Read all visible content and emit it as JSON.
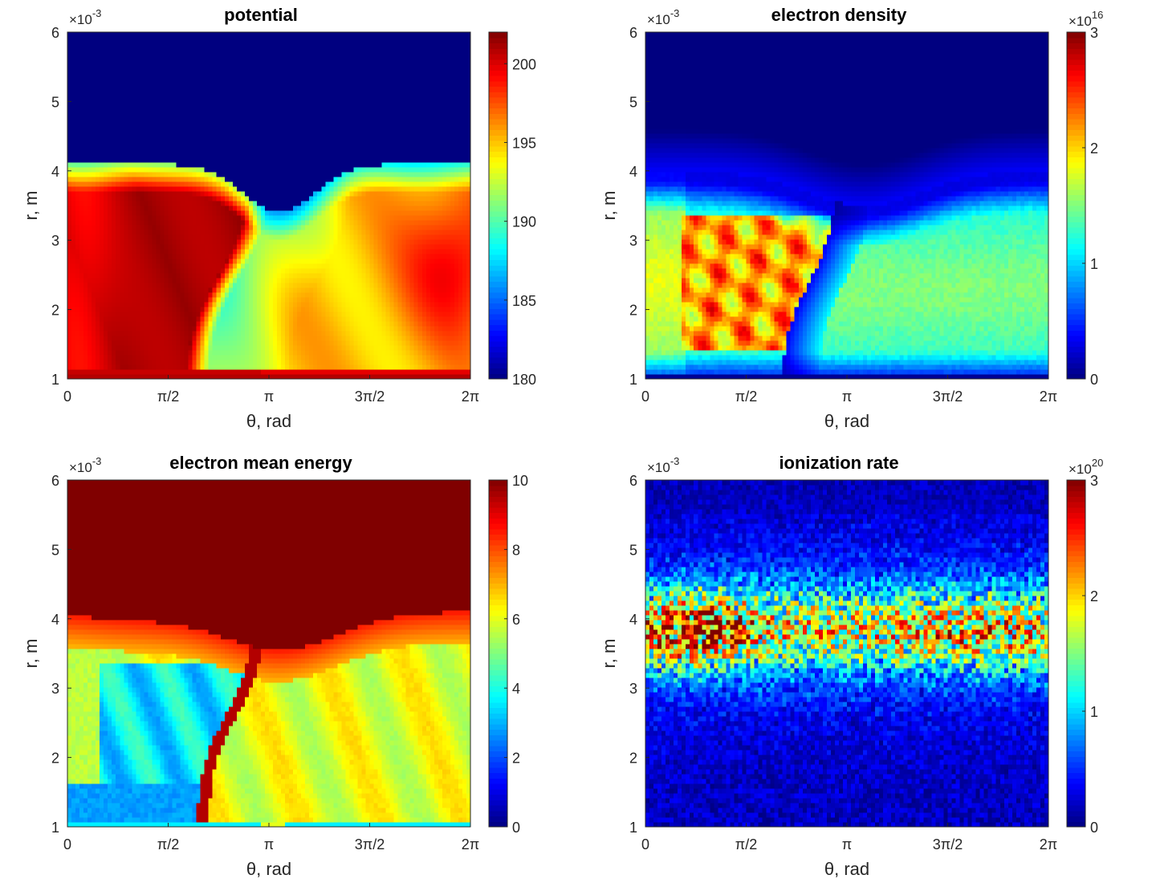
{
  "chart_data": [
    {
      "type": "heatmap",
      "title": "potential",
      "xlabel": "θ, rad",
      "ylabel": "r, m",
      "xlim": [
        0,
        6.2832
      ],
      "ylim": [
        0.001,
        0.006
      ],
      "y_multiplier": "×10",
      "y_multiplier_exp": "-3",
      "xticks": [
        {
          "value": 0,
          "label": "0"
        },
        {
          "value": 1.5708,
          "label": "π/2"
        },
        {
          "value": 3.1416,
          "label": "π"
        },
        {
          "value": 4.7124,
          "label": "3π/2"
        },
        {
          "value": 6.2832,
          "label": "2π"
        }
      ],
      "yticks": [
        {
          "value": 1,
          "label": "1"
        },
        {
          "value": 2,
          "label": "2"
        },
        {
          "value": 3,
          "label": "3"
        },
        {
          "value": 4,
          "label": "4"
        },
        {
          "value": 5,
          "label": "5"
        },
        {
          "value": 6,
          "label": "6"
        }
      ],
      "colormap": "jet",
      "clim": [
        180,
        202
      ],
      "colorbar_ticks": [
        {
          "value": 180,
          "label": "180"
        },
        {
          "value": 185,
          "label": "185"
        },
        {
          "value": 190,
          "label": "190"
        },
        {
          "value": 195,
          "label": "195"
        },
        {
          "value": 200,
          "label": "200"
        }
      ],
      "colorbar_multiplier": "",
      "colorbar_multiplier_exp": "",
      "features": {
        "outer_r": 0.0041,
        "high_region": {
          "theta_range": [
            0,
            3.1
          ],
          "r_range": [
            0.0011,
            0.0038
          ],
          "value": 201
        },
        "low_valley": {
          "theta": 3.3,
          "r_top": 0.0035,
          "value": 188
        },
        "right_region_value": 193,
        "cathode_strip_value": 201
      }
    },
    {
      "type": "heatmap",
      "title": "electron density",
      "xlabel": "θ, rad",
      "ylabel": "r, m",
      "xlim": [
        0,
        6.2832
      ],
      "ylim": [
        0.001,
        0.006
      ],
      "y_multiplier": "×10",
      "y_multiplier_exp": "-3",
      "xticks": [
        {
          "value": 0,
          "label": "0"
        },
        {
          "value": 1.5708,
          "label": "π/2"
        },
        {
          "value": 3.1416,
          "label": "π"
        },
        {
          "value": 4.7124,
          "label": "3π/2"
        },
        {
          "value": 6.2832,
          "label": "2π"
        }
      ],
      "yticks": [
        {
          "value": 1,
          "label": "1"
        },
        {
          "value": 2,
          "label": "2"
        },
        {
          "value": 3,
          "label": "3"
        },
        {
          "value": 4,
          "label": "4"
        },
        {
          "value": 5,
          "label": "5"
        },
        {
          "value": 6,
          "label": "6"
        }
      ],
      "colormap": "jet",
      "clim": [
        0,
        3e+16
      ],
      "colorbar_ticks": [
        {
          "value": 0,
          "label": "0"
        },
        {
          "value": 1e+16,
          "label": "1"
        },
        {
          "value": 2e+16,
          "label": "2"
        },
        {
          "value": 3e+16,
          "label": "3"
        }
      ],
      "colorbar_multiplier": "×10",
      "colorbar_multiplier_exp": "16",
      "features": {
        "spoke": {
          "theta_range": [
            0.6,
            2.9
          ],
          "r_range": [
            0.0015,
            0.0034
          ],
          "peak": 2.6e+16
        },
        "background": 1.2e+16,
        "upper_edge_r": 0.004
      }
    },
    {
      "type": "heatmap",
      "title": "electron mean energy",
      "xlabel": "θ, rad",
      "ylabel": "r, m",
      "xlim": [
        0,
        6.2832
      ],
      "ylim": [
        0.001,
        0.006
      ],
      "y_multiplier": "×10",
      "y_multiplier_exp": "-3",
      "xticks": [
        {
          "value": 0,
          "label": "0"
        },
        {
          "value": 1.5708,
          "label": "π/2"
        },
        {
          "value": 3.1416,
          "label": "π"
        },
        {
          "value": 4.7124,
          "label": "3π/2"
        },
        {
          "value": 6.2832,
          "label": "2π"
        }
      ],
      "yticks": [
        {
          "value": 1,
          "label": "1"
        },
        {
          "value": 2,
          "label": "2"
        },
        {
          "value": 3,
          "label": "3"
        },
        {
          "value": 4,
          "label": "4"
        },
        {
          "value": 5,
          "label": "5"
        },
        {
          "value": 6,
          "label": "6"
        }
      ],
      "colormap": "jet",
      "clim": [
        0,
        10
      ],
      "colorbar_ticks": [
        {
          "value": 0,
          "label": "0"
        },
        {
          "value": 2,
          "label": "2"
        },
        {
          "value": 4,
          "label": "4"
        },
        {
          "value": 6,
          "label": "6"
        },
        {
          "value": 8,
          "label": "8"
        },
        {
          "value": 10,
          "label": "10"
        }
      ],
      "colorbar_multiplier": "",
      "colorbar_multiplier_exp": "",
      "features": {
        "saturated_above_r": 0.0041,
        "cool_region": {
          "theta_range": [
            0.6,
            2.8
          ],
          "r_range": [
            0.0011,
            0.0032
          ],
          "value": 4
        },
        "hot_arc_value": 9.5,
        "mid_band_value": 6.5
      }
    },
    {
      "type": "heatmap",
      "title": "ionization rate",
      "xlabel": "θ, rad",
      "ylabel": "r, m",
      "xlim": [
        0,
        6.2832
      ],
      "ylim": [
        0.001,
        0.006
      ],
      "y_multiplier": "×10",
      "y_multiplier_exp": "-3",
      "xticks": [
        {
          "value": 0,
          "label": "0"
        },
        {
          "value": 1.5708,
          "label": "π/2"
        },
        {
          "value": 3.1416,
          "label": "π"
        },
        {
          "value": 4.7124,
          "label": "3π/2"
        },
        {
          "value": 6.2832,
          "label": "2π"
        }
      ],
      "yticks": [
        {
          "value": 1,
          "label": "1"
        },
        {
          "value": 2,
          "label": "2"
        },
        {
          "value": 3,
          "label": "3"
        },
        {
          "value": 4,
          "label": "4"
        },
        {
          "value": 5,
          "label": "5"
        },
        {
          "value": 6,
          "label": "6"
        }
      ],
      "colormap": "jet",
      "clim": [
        0,
        3e+20
      ],
      "colorbar_ticks": [
        {
          "value": 0,
          "label": "0"
        },
        {
          "value": 1e+20,
          "label": "1"
        },
        {
          "value": 2e+20,
          "label": "2"
        },
        {
          "value": 3e+20,
          "label": "3"
        }
      ],
      "colorbar_multiplier": "×10",
      "colorbar_multiplier_exp": "20",
      "features": {
        "band_center_r": 0.0038,
        "band_width_r": 0.0007,
        "peak_theta_range": [
          0,
          1.8
        ],
        "peak": 2.8e+20,
        "noisy": true
      }
    }
  ]
}
